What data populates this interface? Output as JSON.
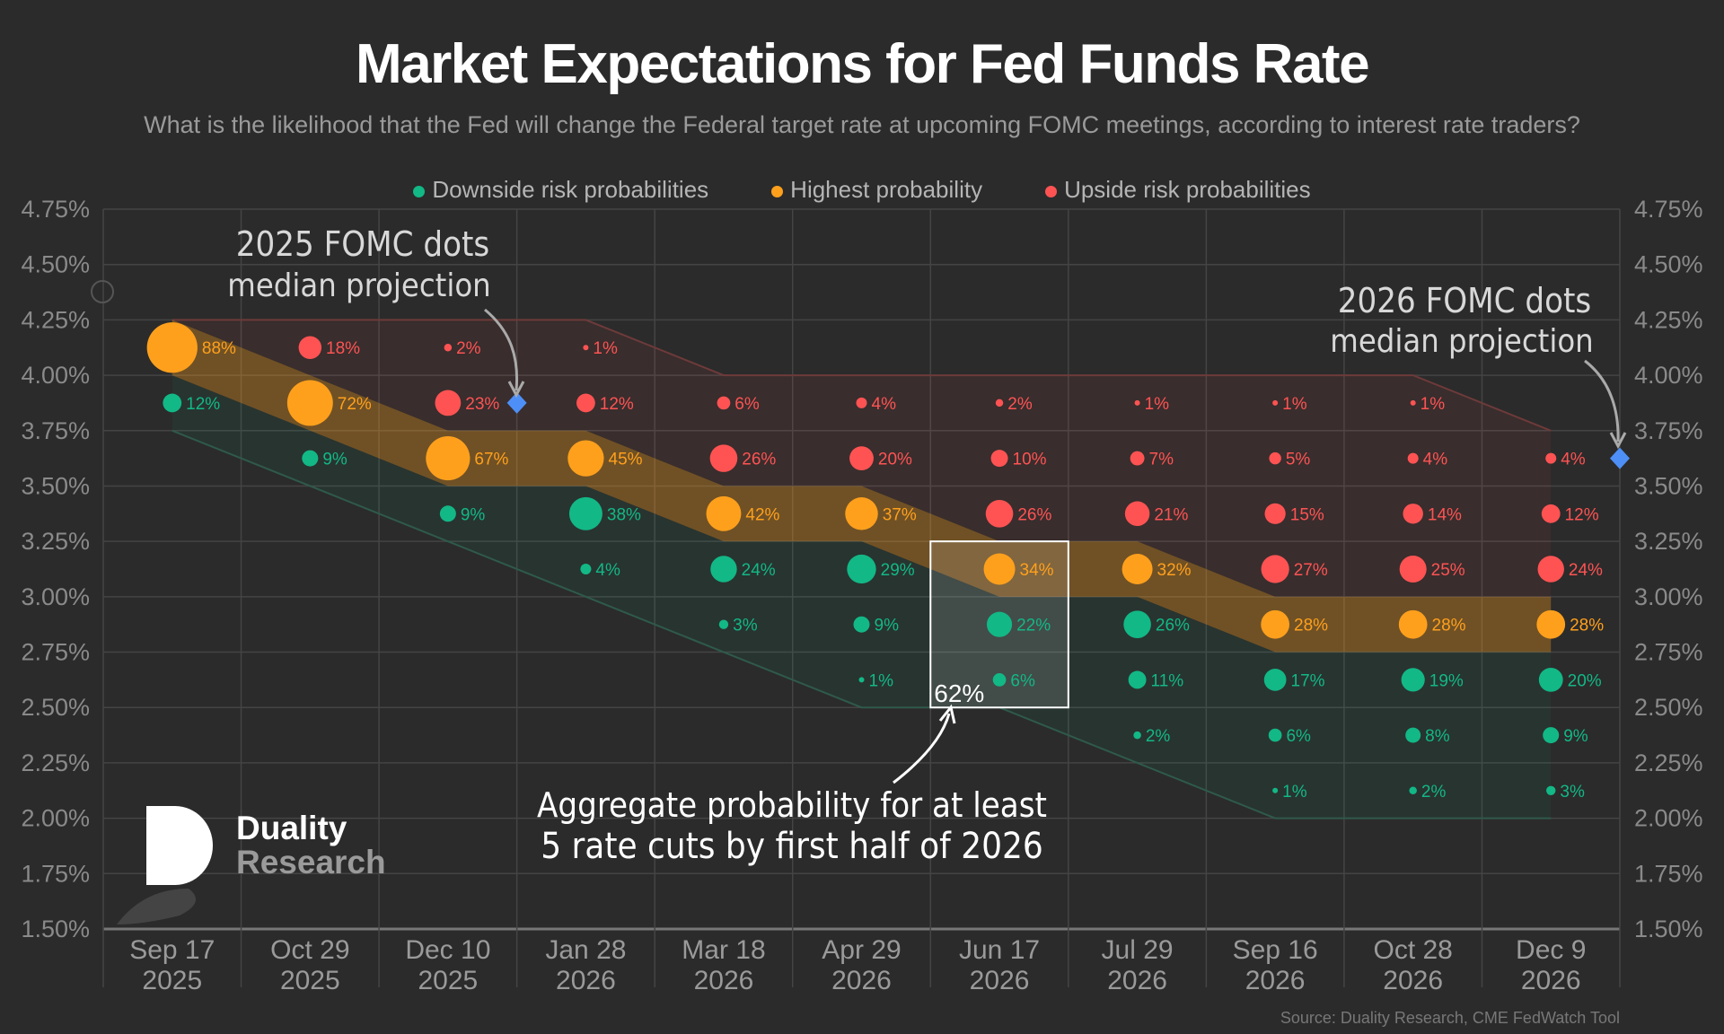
{
  "header": {
    "title": "Market Expectations for Fed Funds Rate",
    "subtitle": "What is the likelihood that the Fed will change the Federal target rate at upcoming FOMC meetings, according to interest rate traders?"
  },
  "legend": [
    {
      "label": "Downside risk probabilities",
      "color": "#12b886"
    },
    {
      "label": "Highest probability",
      "color": "#ffa01c"
    },
    {
      "label": "Upside risk probabilities",
      "color": "#ff5353"
    }
  ],
  "annotations": {
    "fomc_2025_line1": "2025 FOMC dots",
    "fomc_2025_line2": "median projection",
    "fomc_2026_line1": "2026 FOMC dots",
    "fomc_2026_line2": "median projection",
    "aggregate_line1": "Aggregate probability for at least",
    "aggregate_line2": "5 rate cuts by first half of 2026",
    "aggregate_value": "62%"
  },
  "logo": {
    "line1": "Duality",
    "line2": "Research"
  },
  "source": "Source: Duality Research, CME FedWatch Tool",
  "chart_data": {
    "type": "scatter",
    "title": "Market Expectations for Fed Funds Rate",
    "ylabel": "Fed Funds Rate",
    "ylim": [
      1.5,
      4.75
    ],
    "yticks": [
      "4.75%",
      "4.50%",
      "4.25%",
      "4.00%",
      "3.75%",
      "3.50%",
      "3.25%",
      "3.00%",
      "2.75%",
      "2.50%",
      "2.25%",
      "2.00%",
      "1.75%",
      "1.50%"
    ],
    "categories": [
      {
        "date": "Sep 17",
        "year": "2025"
      },
      {
        "date": "Oct 29",
        "year": "2025"
      },
      {
        "date": "Dec 10",
        "year": "2025"
      },
      {
        "date": "Jan 28",
        "year": "2026"
      },
      {
        "date": "Mar 18",
        "year": "2026"
      },
      {
        "date": "Apr 29",
        "year": "2026"
      },
      {
        "date": "Jun 17",
        "year": "2026"
      },
      {
        "date": "Jul 29",
        "year": "2026"
      },
      {
        "date": "Sep 16",
        "year": "2026"
      },
      {
        "date": "Oct 28",
        "year": "2026"
      },
      {
        "date": "Dec 9",
        "year": "2026"
      }
    ],
    "points": [
      [
        [
          4.125,
          88,
          "high"
        ],
        [
          3.875,
          12,
          "down"
        ]
      ],
      [
        [
          4.125,
          18,
          "up"
        ],
        [
          3.875,
          72,
          "high"
        ],
        [
          3.625,
          9,
          "down"
        ]
      ],
      [
        [
          4.125,
          2,
          "up"
        ],
        [
          3.875,
          23,
          "up"
        ],
        [
          3.625,
          67,
          "high"
        ],
        [
          3.375,
          9,
          "down"
        ]
      ],
      [
        [
          4.125,
          1,
          "up"
        ],
        [
          3.875,
          12,
          "up"
        ],
        [
          3.625,
          45,
          "high"
        ],
        [
          3.375,
          38,
          "down"
        ],
        [
          3.125,
          4,
          "down"
        ]
      ],
      [
        [
          3.875,
          6,
          "up"
        ],
        [
          3.625,
          26,
          "up"
        ],
        [
          3.375,
          42,
          "high"
        ],
        [
          3.125,
          24,
          "down"
        ],
        [
          2.875,
          3,
          "down"
        ]
      ],
      [
        [
          3.875,
          4,
          "up"
        ],
        [
          3.625,
          20,
          "up"
        ],
        [
          3.375,
          37,
          "high"
        ],
        [
          3.125,
          29,
          "down"
        ],
        [
          2.875,
          9,
          "down"
        ],
        [
          2.625,
          1,
          "down"
        ]
      ],
      [
        [
          3.875,
          2,
          "up"
        ],
        [
          3.625,
          10,
          "up"
        ],
        [
          3.375,
          26,
          "up"
        ],
        [
          3.125,
          34,
          "high"
        ],
        [
          2.875,
          22,
          "down"
        ],
        [
          2.625,
          6,
          "down"
        ]
      ],
      [
        [
          3.875,
          1,
          "up"
        ],
        [
          3.625,
          7,
          "up"
        ],
        [
          3.375,
          21,
          "up"
        ],
        [
          3.125,
          32,
          "high"
        ],
        [
          2.875,
          26,
          "down"
        ],
        [
          2.625,
          11,
          "down"
        ],
        [
          2.375,
          2,
          "down"
        ]
      ],
      [
        [
          3.875,
          1,
          "up"
        ],
        [
          3.625,
          5,
          "up"
        ],
        [
          3.375,
          15,
          "up"
        ],
        [
          3.125,
          27,
          "up"
        ],
        [
          2.875,
          28,
          "high"
        ],
        [
          2.625,
          17,
          "down"
        ],
        [
          2.375,
          6,
          "down"
        ],
        [
          2.125,
          1,
          "down"
        ]
      ],
      [
        [
          3.875,
          1,
          "up"
        ],
        [
          3.625,
          4,
          "up"
        ],
        [
          3.375,
          14,
          "up"
        ],
        [
          3.125,
          25,
          "up"
        ],
        [
          2.875,
          28,
          "high"
        ],
        [
          2.625,
          19,
          "down"
        ],
        [
          2.375,
          8,
          "down"
        ],
        [
          2.125,
          2,
          "down"
        ]
      ],
      [
        [
          3.625,
          4,
          "up"
        ],
        [
          3.375,
          12,
          "up"
        ],
        [
          3.125,
          24,
          "up"
        ],
        [
          2.875,
          28,
          "high"
        ],
        [
          2.625,
          20,
          "down"
        ],
        [
          2.375,
          9,
          "down"
        ],
        [
          2.125,
          3,
          "down"
        ]
      ]
    ],
    "fomc_median_2025": 3.875,
    "fomc_median_2026": 3.625,
    "highlight": {
      "column": "Jun 17 2026",
      "range": [
        2.5,
        3.25
      ],
      "aggregate_probability": 62
    },
    "colors": {
      "up": "#ff5353",
      "high": "#ffa01c",
      "down": "#12b886",
      "median": "#4d8ff7"
    }
  }
}
